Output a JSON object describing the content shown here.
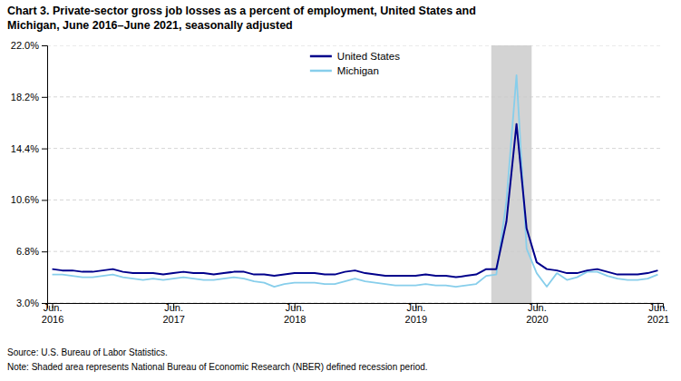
{
  "chart_data": {
    "type": "line",
    "title": "Chart 3. Private-sector gross job losses as a percent of employment, United States and\nMichigan, June 2016–June 2021, seasonally adjusted",
    "categories": [
      "Jun.\n2016",
      null,
      null,
      null,
      null,
      null,
      null,
      null,
      null,
      null,
      null,
      null,
      "Jun.\n2017",
      null,
      null,
      null,
      null,
      null,
      null,
      null,
      null,
      null,
      null,
      null,
      "Jun.\n2018",
      null,
      null,
      null,
      null,
      null,
      null,
      null,
      null,
      null,
      null,
      null,
      "Jun.\n2019",
      null,
      null,
      null,
      null,
      null,
      null,
      null,
      null,
      null,
      null,
      null,
      "Jun.\n2020",
      null,
      null,
      null,
      null,
      null,
      null,
      null,
      null,
      null,
      null,
      null,
      "Jun.\n2021"
    ],
    "series": [
      {
        "name": "United States",
        "color": "#00008B",
        "values": [
          5.5,
          5.4,
          5.4,
          5.3,
          5.3,
          5.4,
          5.5,
          5.3,
          5.2,
          5.2,
          5.2,
          5.1,
          5.2,
          5.3,
          5.2,
          5.2,
          5.1,
          5.2,
          5.3,
          5.3,
          5.1,
          5.1,
          5.0,
          5.1,
          5.2,
          5.2,
          5.2,
          5.1,
          5.1,
          5.3,
          5.4,
          5.2,
          5.1,
          5.0,
          5.0,
          5.0,
          5.0,
          5.1,
          5.0,
          5.0,
          4.9,
          5.0,
          5.1,
          5.5,
          5.5,
          9.0,
          16.2,
          8.5,
          6.0,
          5.5,
          5.4,
          5.2,
          5.2,
          5.4,
          5.5,
          5.3,
          5.1,
          5.1,
          5.1,
          5.2,
          5.4
        ]
      },
      {
        "name": "Michigan",
        "color": "#87CEEB",
        "values": [
          5.1,
          5.1,
          5.0,
          4.9,
          4.9,
          5.0,
          5.1,
          4.9,
          4.8,
          4.7,
          4.8,
          4.7,
          4.8,
          4.9,
          4.8,
          4.7,
          4.7,
          4.8,
          4.9,
          4.8,
          4.6,
          4.5,
          4.2,
          4.4,
          4.5,
          4.5,
          4.5,
          4.4,
          4.4,
          4.6,
          4.8,
          4.6,
          4.5,
          4.4,
          4.3,
          4.3,
          4.3,
          4.4,
          4.3,
          4.3,
          4.2,
          4.3,
          4.4,
          5.0,
          5.1,
          10.5,
          19.8,
          7.0,
          5.2,
          4.2,
          5.2,
          4.7,
          4.9,
          5.3,
          5.3,
          5.0,
          4.8,
          4.7,
          4.7,
          4.8,
          5.1
        ]
      }
    ],
    "recession": {
      "start": 44,
      "end": 47,
      "color": "#D3D3D3"
    },
    "ylim": [
      3.0,
      22.0
    ],
    "yticks": [
      {
        "value": 3.0,
        "label": "3.0%"
      },
      {
        "value": 6.8,
        "label": "6.8%"
      },
      {
        "value": 10.6,
        "label": "10.6%"
      },
      {
        "value": 14.4,
        "label": "14.4%"
      },
      {
        "value": 18.2,
        "label": "18.2%"
      },
      {
        "value": 22.0,
        "label": "22.0%"
      }
    ],
    "grid": true,
    "legend": "upper center",
    "annotations": [
      "Source: U.S. Bureau of Labor Statistics.",
      "Note: Shaded area represents National Bureau of Economic Research (NBER) defined recession period."
    ]
  }
}
